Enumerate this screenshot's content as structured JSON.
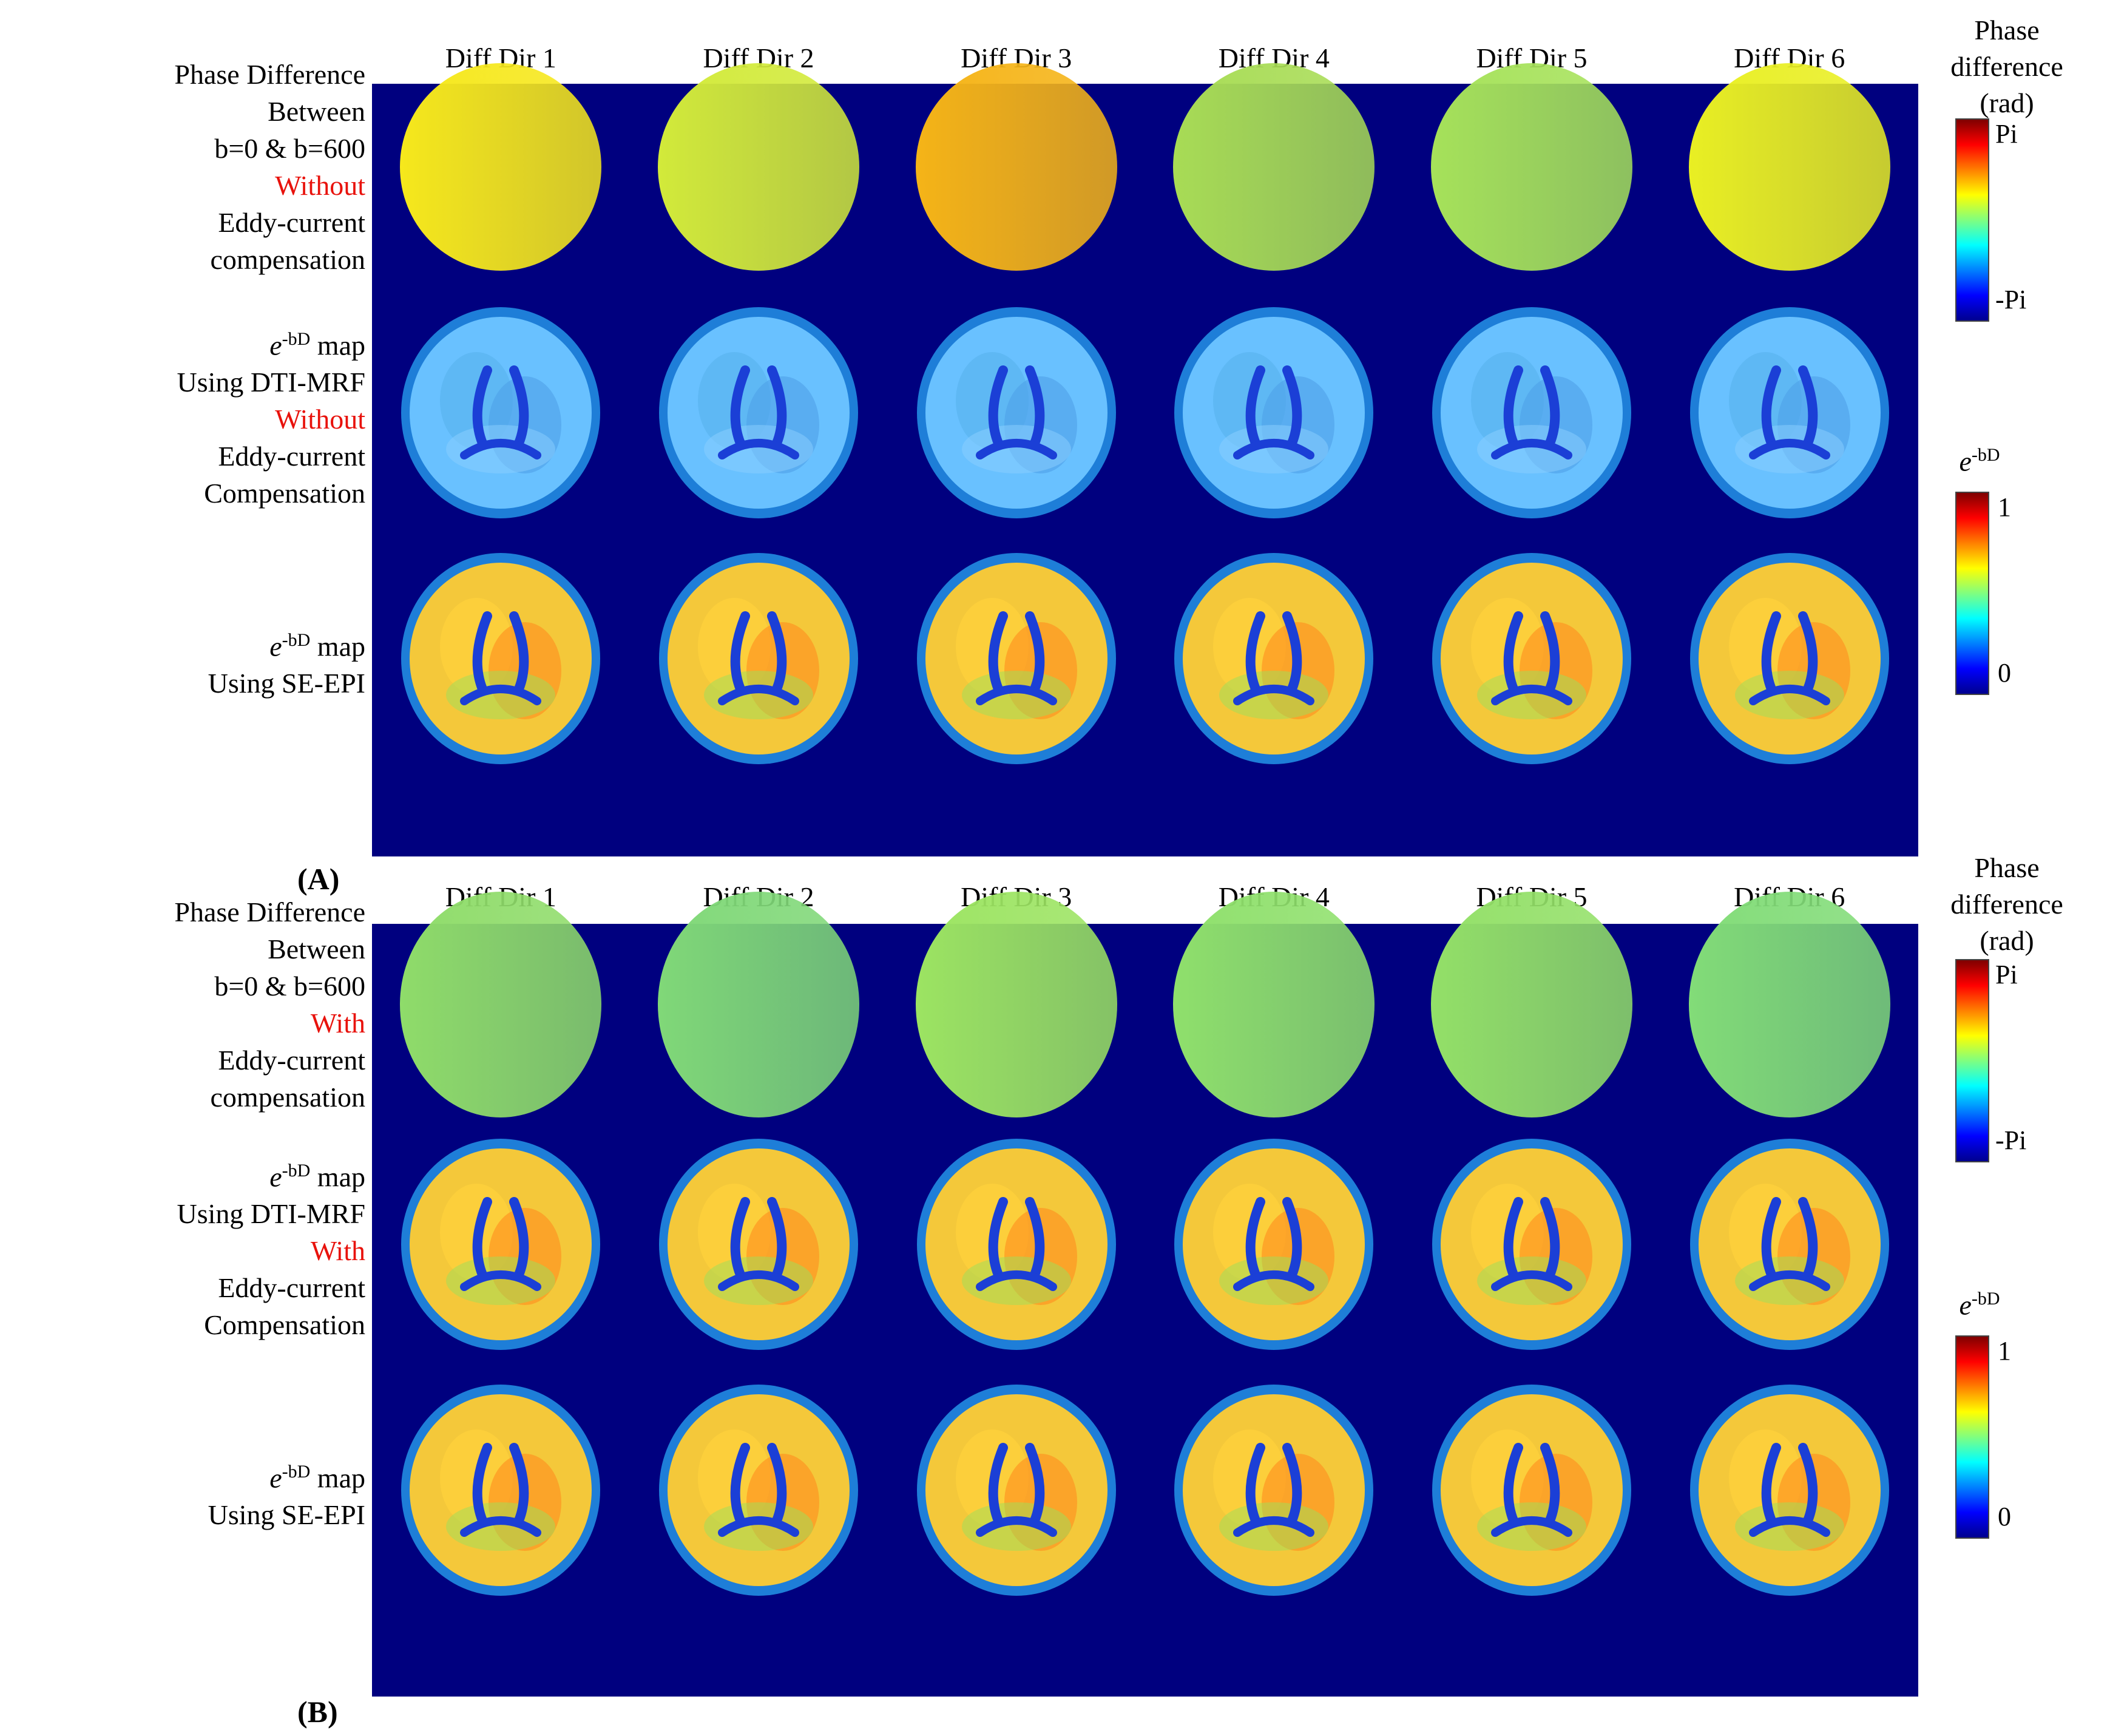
{
  "panels": [
    {
      "label": "(A)",
      "headers": [
        "Diff Dir 1",
        "Diff Dir 2",
        "Diff Dir 3",
        "Diff Dir 4",
        "Diff Dir 5",
        "Diff Dir 6"
      ],
      "rows": [
        {
          "lines": [
            {
              "text": "Phase Difference"
            },
            {
              "text": "Between"
            },
            {
              "text": "b=0 & b=600"
            },
            {
              "text": "Without",
              "accent": true
            },
            {
              "text": "Eddy-current"
            },
            {
              "text": "compensation"
            }
          ]
        },
        {
          "lines": [
            {
              "text": "e",
              "sup": "-bD",
              "tail": " map"
            },
            {
              "text": "Using DTI-MRF"
            },
            {
              "text": "Without",
              "accent": true
            },
            {
              "text": "Eddy-current"
            },
            {
              "text": "Compensation"
            }
          ]
        },
        {
          "lines": [
            {
              "text": "e",
              "sup": "-bD",
              "tail": " map"
            },
            {
              "text": "Using SE-EPI"
            }
          ]
        }
      ],
      "colorbars": [
        {
          "title_lines": [
            "Phase",
            "difference",
            "(rad)"
          ],
          "max_label": "Pi",
          "min_label": "-Pi"
        },
        {
          "title": "e",
          "title_sup": "-bD",
          "max_label": "1",
          "min_label": "0"
        }
      ]
    },
    {
      "label": "(B)",
      "headers": [
        "Diff Dir 1",
        "Diff Dir 2",
        "Diff Dir 3",
        "Diff Dir 4",
        "Diff Dir 5",
        "Diff Dir 6"
      ],
      "rows": [
        {
          "lines": [
            {
              "text": "Phase Difference"
            },
            {
              "text": "Between"
            },
            {
              "text": "b=0 & b=600"
            },
            {
              "text": "With",
              "accent": true
            },
            {
              "text": "Eddy-current"
            },
            {
              "text": "compensation"
            }
          ]
        },
        {
          "lines": [
            {
              "text": "e",
              "sup": "-bD",
              "tail": " map"
            },
            {
              "text": "Using DTI-MRF"
            },
            {
              "text": "With",
              "accent": true
            },
            {
              "text": "Eddy-current"
            },
            {
              "text": "Compensation"
            }
          ]
        },
        {
          "lines": [
            {
              "text": "e",
              "sup": "-bD",
              "tail": " map"
            },
            {
              "text": "Using SE-EPI"
            }
          ]
        }
      ],
      "colorbars": [
        {
          "title_lines": [
            "Phase",
            "difference",
            "(rad)"
          ],
          "max_label": "Pi",
          "min_label": "-Pi"
        },
        {
          "title": "e",
          "title_sup": "-bD",
          "max_label": "1",
          "min_label": "0"
        }
      ]
    }
  ],
  "colors": {
    "background": "#00007f",
    "accent_text": "#e8120c",
    "phase_without": [
      "#f6e81c",
      "#d2ea3a",
      "#f5b417",
      "#a8dc55",
      "#a6e25a",
      "#e9ef23"
    ],
    "phase_with": [
      "#8fdc6a",
      "#80d878",
      "#9ce462",
      "#8fe06c",
      "#93e068",
      "#82dc78"
    ]
  }
}
